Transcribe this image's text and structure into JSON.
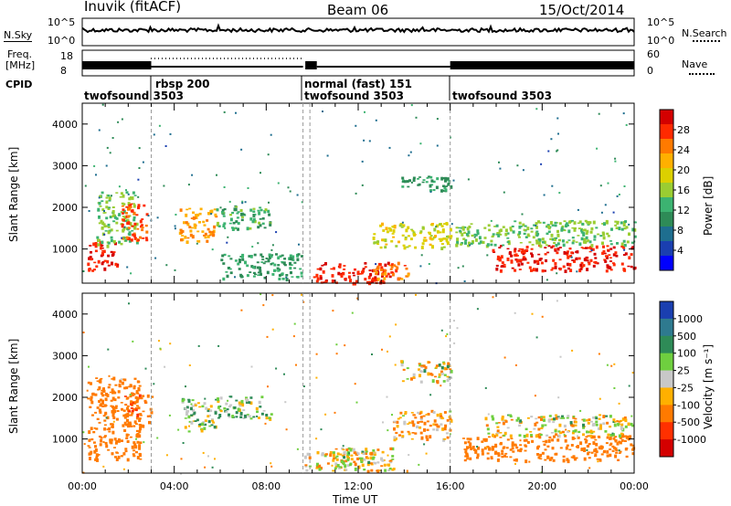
{
  "header": {
    "station_label": "Inuvik (fitACF)",
    "beam_label": "Beam 06",
    "date_label": "15/Oct/2014"
  },
  "nsky_panel": {
    "left_label": "N.Sky",
    "left_ticks": [
      "10^5",
      "10^0"
    ],
    "right_ticks": [
      "10^5",
      "10^0"
    ],
    "right_label": "N.Search"
  },
  "freq_panel": {
    "left_label_line1": "Freq.",
    "left_label_line2": "[MHz]",
    "left_ticks": [
      "18",
      "8"
    ],
    "right_ticks": [
      "60",
      "0"
    ],
    "right_label": "Nave"
  },
  "cpid_row": {
    "label": "CPID",
    "segments": [
      {
        "name": "twofsound 3503",
        "start_h": 0,
        "end_h": 3.0
      },
      {
        "name": "rbsp 200",
        "start_h": 3.0,
        "end_h": 9.6
      },
      {
        "name": "normal (fast) 151",
        "start_h": 9.6,
        "end_h": 16.0
      },
      {
        "name": "twofsound 3503",
        "start_h": 9.6,
        "end_h": 16.0
      },
      {
        "name": "twofsound 3503",
        "start_h": 16.0,
        "end_h": 24.0
      }
    ]
  },
  "power_colorbar": {
    "title": "Power [dB]",
    "tick_labels": [
      "28",
      "24",
      "20",
      "16",
      "12",
      "8",
      "4"
    ],
    "colors": [
      "#d40000",
      "#ff2a00",
      "#ff7a00",
      "#ffb000",
      "#dcd000",
      "#9acd32",
      "#3cb371",
      "#2e8b57",
      "#1e6e8f",
      "#1a3fb0",
      "#0000ff"
    ]
  },
  "velocity_colorbar": {
    "title": "Velocity [m s⁻¹]",
    "tick_labels": [
      "1000",
      "500",
      "100",
      "25",
      "-25",
      "-100",
      "-500",
      "-1000"
    ],
    "colors": [
      "#1a3fb0",
      "#2e7a8f",
      "#2e8b57",
      "#6fcf3f",
      "#c8c8c8",
      "#ffb000",
      "#ff7a00",
      "#ff3000",
      "#d40000"
    ]
  },
  "x_axis": {
    "label": "Time UT",
    "tick_labels": [
      "00:00",
      "04:00",
      "08:00",
      "12:00",
      "16:00",
      "20:00",
      "00:00"
    ]
  },
  "chart_data": [
    {
      "type": "heatmap",
      "title": "Power [dB]",
      "xlabel": "Time UT",
      "ylabel": "Slant Range [km]",
      "xlim": [
        0,
        24
      ],
      "ylim": [
        180,
        4500
      ],
      "y_ticks": [
        1000,
        2000,
        3000,
        4000
      ],
      "colorbar_range": [
        0,
        30
      ],
      "series": [
        {
          "time_h": [
            0.2,
            1.5
          ],
          "range_km": [
            500,
            1200
          ],
          "value": 28
        },
        {
          "time_h": [
            0.6,
            2.4
          ],
          "range_km": [
            1100,
            2400
          ],
          "value": 14
        },
        {
          "time_h": [
            1.6,
            2.8
          ],
          "range_km": [
            1200,
            2100
          ],
          "value": 26
        },
        {
          "time_h": [
            4.2,
            5.8
          ],
          "range_km": [
            1200,
            2000
          ],
          "value": 22
        },
        {
          "time_h": [
            5.8,
            8.2
          ],
          "range_km": [
            1500,
            2050
          ],
          "value": 12
        },
        {
          "time_h": [
            6.0,
            9.5
          ],
          "range_km": [
            300,
            900
          ],
          "value": 10
        },
        {
          "time_h": [
            10.0,
            13.5
          ],
          "range_km": [
            200,
            700
          ],
          "value": 28
        },
        {
          "time_h": [
            12.5,
            14.2
          ],
          "range_km": [
            300,
            700
          ],
          "value": 24
        },
        {
          "time_h": [
            12.6,
            16.0
          ],
          "range_km": [
            1050,
            1650
          ],
          "value": 18
        },
        {
          "time_h": [
            13.8,
            16.0
          ],
          "range_km": [
            2400,
            2800
          ],
          "value": 10
        },
        {
          "time_h": [
            17.8,
            24.0
          ],
          "range_km": [
            500,
            1100
          ],
          "value": 28
        },
        {
          "time_h": [
            16.2,
            24.0
          ],
          "range_km": [
            1100,
            1700
          ],
          "value": 14
        }
      ]
    },
    {
      "type": "heatmap",
      "title": "Velocity [m s⁻¹]",
      "xlabel": "Time UT",
      "ylabel": "Slant Range [km]",
      "xlim": [
        0,
        24
      ],
      "ylim": [
        180,
        4500
      ],
      "y_ticks": [
        1000,
        2000,
        3000,
        4000
      ],
      "colorbar_range": [
        -1000,
        1000
      ],
      "series": [
        {
          "time_h": [
            0.2,
            2.5
          ],
          "range_km": [
            500,
            2500
          ],
          "value": -300
        },
        {
          "time_h": [
            1.8,
            3.0
          ],
          "range_km": [
            1300,
            2100
          ],
          "value": -400
        },
        {
          "time_h": [
            4.3,
            5.8
          ],
          "range_km": [
            1200,
            2000
          ],
          "value": 60
        },
        {
          "time_h": [
            5.8,
            8.2
          ],
          "range_km": [
            1500,
            2050
          ],
          "value": 80
        },
        {
          "time_h": [
            9.6,
            13.5
          ],
          "range_km": [
            250,
            800
          ],
          "value": -60
        },
        {
          "time_h": [
            11.0,
            12.6
          ],
          "range_km": [
            400,
            800
          ],
          "value": 0
        },
        {
          "time_h": [
            13.5,
            16.0
          ],
          "range_km": [
            1000,
            1700
          ],
          "value": -120
        },
        {
          "time_h": [
            13.8,
            16.0
          ],
          "range_km": [
            2400,
            2900
          ],
          "value": 0
        },
        {
          "time_h": [
            16.5,
            24.0
          ],
          "range_km": [
            500,
            1100
          ],
          "value": -250
        },
        {
          "time_h": [
            17.5,
            24.0
          ],
          "range_km": [
            1100,
            1600
          ],
          "value": -20
        }
      ]
    }
  ]
}
